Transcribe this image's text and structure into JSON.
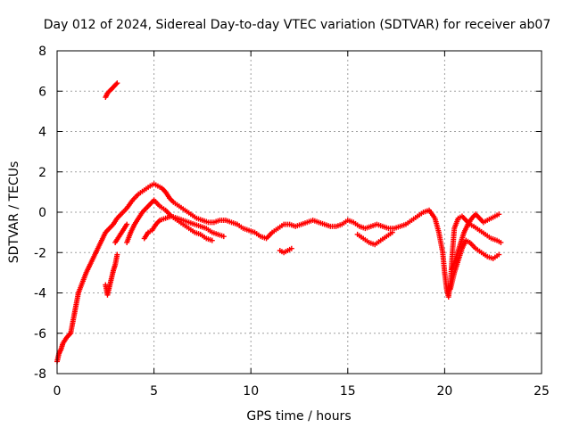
{
  "chart_data": {
    "type": "scatter",
    "title": "Day 012 of 2024, Sidereal Day-to-day VTEC variation (SDTVAR) for receiver ab07",
    "xlabel": "GPS time / hours",
    "ylabel": "SDTVAR / TECUs",
    "xlim": [
      0,
      25
    ],
    "ylim": [
      -8,
      8
    ],
    "xticks": [
      0,
      5,
      10,
      15,
      20,
      25
    ],
    "yticks": [
      -8,
      -6,
      -4,
      -2,
      0,
      2,
      4,
      6,
      8
    ],
    "grid": true,
    "marker": "+",
    "color": "#ff0000",
    "series": [
      {
        "name": "track-1",
        "x": [
          0.0,
          0.1,
          0.2,
          0.3,
          0.5,
          0.7,
          0.8,
          0.9,
          1.0,
          1.1,
          1.3,
          1.5,
          1.7,
          1.9,
          2.1,
          2.3,
          2.5,
          2.7,
          2.9,
          3.1,
          3.3,
          3.6,
          3.9,
          4.2,
          4.5,
          4.8,
          5.0,
          5.2,
          5.4,
          5.6,
          5.8,
          6.0,
          6.3,
          6.6,
          6.9,
          7.2,
          7.5,
          7.8,
          8.1,
          8.4,
          8.7,
          9.0,
          9.3,
          9.6,
          9.9,
          10.2,
          10.5,
          10.8,
          11.1,
          11.4,
          11.7,
          12.0,
          12.3,
          12.6,
          12.9,
          13.2,
          13.5,
          13.8,
          14.1,
          14.4,
          14.7,
          15.0,
          15.3,
          15.6,
          15.9,
          16.2,
          16.5,
          16.8,
          17.1,
          17.4,
          17.7,
          18.0,
          18.3,
          18.6,
          18.9,
          19.2,
          19.5,
          19.7,
          19.9,
          20.0,
          20.1,
          20.2,
          20.3,
          20.4,
          20.5,
          20.7,
          20.9,
          21.1,
          21.3,
          21.5,
          21.8,
          22.1,
          22.4,
          22.7,
          22.9
        ],
        "values": [
          -7.4,
          -7.0,
          -6.8,
          -6.5,
          -6.2,
          -6.0,
          -5.5,
          -5.0,
          -4.5,
          -4.0,
          -3.5,
          -3.0,
          -2.6,
          -2.2,
          -1.8,
          -1.4,
          -1.0,
          -0.8,
          -0.6,
          -0.3,
          -0.1,
          0.2,
          0.6,
          0.9,
          1.1,
          1.3,
          1.4,
          1.3,
          1.2,
          1.0,
          0.7,
          0.5,
          0.3,
          0.1,
          -0.1,
          -0.3,
          -0.4,
          -0.5,
          -0.5,
          -0.4,
          -0.4,
          -0.5,
          -0.6,
          -0.8,
          -0.9,
          -1.0,
          -1.2,
          -1.3,
          -1.0,
          -0.8,
          -0.6,
          -0.6,
          -0.7,
          -0.6,
          -0.5,
          -0.4,
          -0.5,
          -0.6,
          -0.7,
          -0.7,
          -0.6,
          -0.4,
          -0.5,
          -0.7,
          -0.8,
          -0.7,
          -0.6,
          -0.7,
          -0.8,
          -0.8,
          -0.7,
          -0.6,
          -0.4,
          -0.2,
          0.0,
          0.1,
          -0.3,
          -1.0,
          -2.0,
          -3.0,
          -3.8,
          -4.2,
          -3.5,
          -2.0,
          -0.8,
          -0.3,
          -0.2,
          -0.4,
          -0.6,
          -0.7,
          -0.9,
          -1.1,
          -1.3,
          -1.4,
          -1.5
        ]
      },
      {
        "name": "track-2",
        "x": [
          2.5,
          2.6,
          2.7,
          2.8,
          2.9,
          3.0,
          3.1
        ],
        "values": [
          5.7,
          5.9,
          6.0,
          6.1,
          6.2,
          6.3,
          6.4
        ]
      },
      {
        "name": "track-3",
        "x": [
          2.5,
          2.6,
          2.7,
          2.8,
          2.9,
          3.0,
          3.1
        ],
        "values": [
          -3.6,
          -4.1,
          -3.7,
          -3.3,
          -2.9,
          -2.6,
          -2.1
        ]
      },
      {
        "name": "track-4",
        "x": [
          3.6,
          3.8,
          4.0,
          4.2,
          4.4,
          4.6,
          4.8,
          5.0,
          5.3,
          5.6,
          5.9,
          6.2,
          6.5,
          6.8,
          7.1,
          7.4,
          7.7,
          8.0
        ],
        "values": [
          -1.5,
          -1.0,
          -0.6,
          -0.3,
          0.0,
          0.2,
          0.4,
          0.6,
          0.3,
          0.1,
          -0.2,
          -0.4,
          -0.6,
          -0.8,
          -1.0,
          -1.1,
          -1.3,
          -1.4
        ]
      },
      {
        "name": "track-5",
        "x": [
          4.5,
          4.7,
          4.9,
          5.1,
          5.3,
          5.6,
          5.9,
          6.2,
          6.5,
          6.8,
          7.1,
          7.4,
          7.7,
          8.0,
          8.3,
          8.6
        ],
        "values": [
          -1.3,
          -1.0,
          -0.9,
          -0.6,
          -0.4,
          -0.3,
          -0.2,
          -0.3,
          -0.4,
          -0.5,
          -0.6,
          -0.7,
          -0.8,
          -1.0,
          -1.1,
          -1.2
        ]
      },
      {
        "name": "track-6",
        "x": [
          3.0,
          3.2,
          3.4,
          3.6
        ],
        "values": [
          -1.5,
          -1.2,
          -0.9,
          -0.6
        ]
      },
      {
        "name": "track-7",
        "x": [
          11.5,
          11.7,
          11.9,
          12.1
        ],
        "values": [
          -1.9,
          -2.0,
          -1.9,
          -1.8
        ]
      },
      {
        "name": "track-8",
        "x": [
          15.5,
          15.8,
          16.1,
          16.4,
          16.7,
          17.0,
          17.3
        ],
        "values": [
          -1.1,
          -1.3,
          -1.5,
          -1.6,
          -1.4,
          -1.2,
          -1.0
        ]
      },
      {
        "name": "track-9",
        "x": [
          20.4,
          20.6,
          20.8,
          21.0,
          21.2,
          21.4,
          21.6,
          21.8,
          22.0,
          22.2,
          22.4,
          22.6,
          22.8
        ],
        "values": [
          -2.8,
          -2.2,
          -1.6,
          -1.0,
          -0.6,
          -0.3,
          -0.1,
          -0.3,
          -0.5,
          -0.4,
          -0.3,
          -0.2,
          -0.1
        ]
      },
      {
        "name": "track-10",
        "x": [
          20.3,
          20.5,
          20.7,
          20.9,
          21.1,
          21.3,
          21.6,
          21.9,
          22.2,
          22.5,
          22.8
        ],
        "values": [
          -3.8,
          -3.0,
          -2.4,
          -1.8,
          -1.4,
          -1.5,
          -1.8,
          -2.0,
          -2.2,
          -2.3,
          -2.1
        ]
      }
    ]
  }
}
